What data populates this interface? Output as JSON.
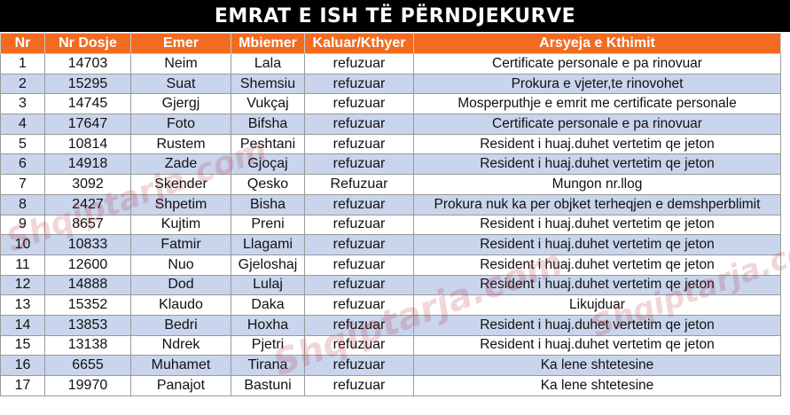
{
  "title": "EMRAT E ISH TË PËRNDJEKURVE",
  "columns": [
    "Nr",
    "Nr Dosje",
    "Emer",
    "Mbiemer",
    "Kaluar/Kthyer",
    "Arsyeja e Kthimit"
  ],
  "rows": [
    [
      "1",
      "14703",
      "Neim",
      "Lala",
      "refuzuar",
      "Certificate personale e pa rinovuar"
    ],
    [
      "2",
      "15295",
      "Suat",
      "Shemsiu",
      "refuzuar",
      "Prokura e vjeter,te rinovohet"
    ],
    [
      "3",
      "14745",
      "Gjergj",
      "Vukçaj",
      "refuzuar",
      "Mosperputhje e emrit me certificate personale"
    ],
    [
      "4",
      "17647",
      "Foto",
      "Bifsha",
      "refuzuar",
      "Certificate personale e pa rinovuar"
    ],
    [
      "5",
      "10814",
      "Rustem",
      "Peshtani",
      "refuzuar",
      "Resident i huaj.duhet vertetim qe jeton"
    ],
    [
      "6",
      "14918",
      "Zade",
      "Gjoçaj",
      "refuzuar",
      "Resident i huaj.duhet vertetim qe jeton"
    ],
    [
      "7",
      "3092",
      "Skender",
      "Qesko",
      "Refuzuar",
      "Mungon nr.llog"
    ],
    [
      "8",
      "2427",
      "Shpetim",
      "Bisha",
      "refuzuar",
      "Prokura nuk ka per objket terheqjen e demshperblimit"
    ],
    [
      "9",
      "8657",
      "Kujtim",
      "Preni",
      "refuzuar",
      "Resident i huaj.duhet vertetim qe jeton"
    ],
    [
      "10",
      "10833",
      "Fatmir",
      "Llagami",
      "refuzuar",
      "Resident i huaj.duhet vertetim qe jeton"
    ],
    [
      "11",
      "12600",
      "Nuo",
      "Gjeloshaj",
      "refuzuar",
      "Resident i huaj.duhet vertetim qe jeton"
    ],
    [
      "12",
      "14888",
      "Dod",
      "Lulaj",
      "refuzuar",
      "Resident i huaj.duhet vertetim qe jeton"
    ],
    [
      "13",
      "15352",
      "Klaudo",
      "Daka",
      "refuzuar",
      "Likujduar"
    ],
    [
      "14",
      "13853",
      "Bedri",
      "Hoxha",
      "refuzuar",
      "Resident i huaj.duhet vertetim qe jeton"
    ],
    [
      "15",
      "13138",
      "Ndrek",
      "Pjetri",
      "refuzuar",
      "Resident i huaj.duhet vertetim qe jeton"
    ],
    [
      "16",
      "6655",
      "Muhamet",
      "Tirana",
      "refuzuar",
      "Ka lene shtetesine"
    ],
    [
      "17",
      "19970",
      "Panajot",
      "Bastuni",
      "refuzuar",
      "Ka lene shtetesine"
    ]
  ],
  "watermark": "Shqiptarja.com",
  "colors": {
    "title_bg": "#000000",
    "header_bg": "#f26b21",
    "row_alt": "#c9d5ec",
    "watermark": "#b41e28"
  }
}
